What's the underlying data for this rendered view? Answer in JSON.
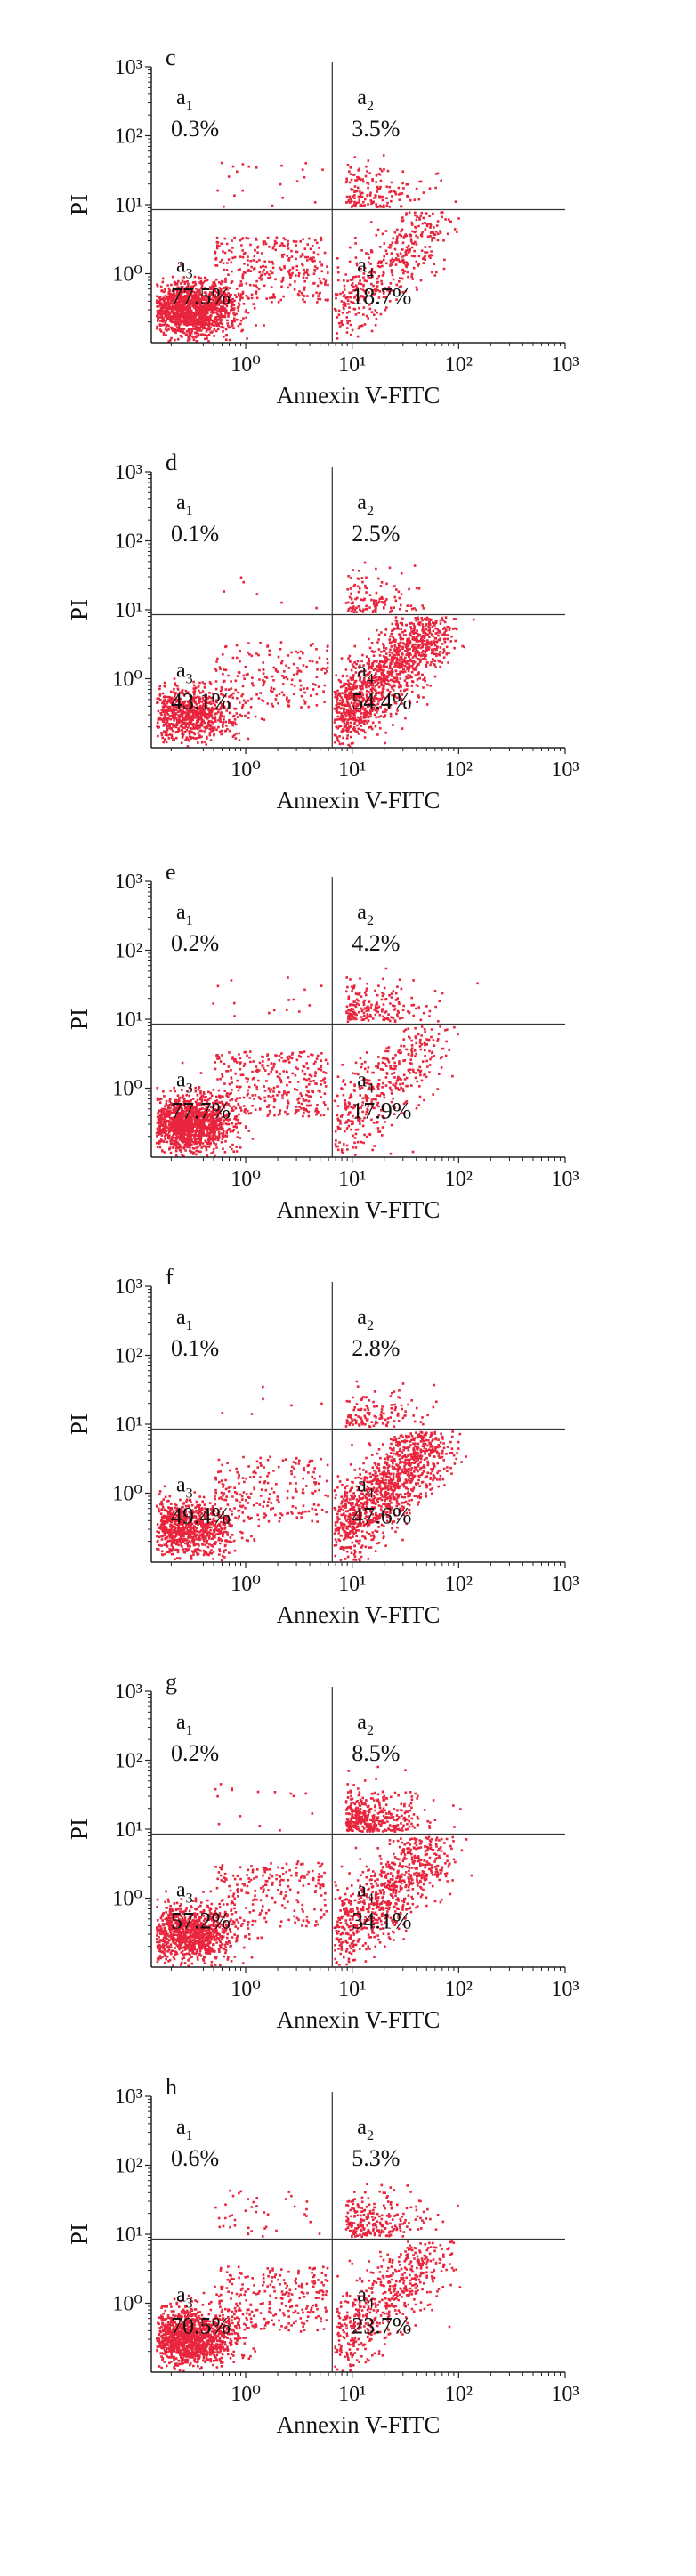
{
  "chart_data": [
    {
      "type": "scatter",
      "panel_label": "c",
      "xlabel": "Annexin V-FITC",
      "ylabel": "PI",
      "x_scale": "log",
      "y_scale": "log",
      "xlim": [
        0.13,
        1000
      ],
      "ylim": [
        0.1,
        1000
      ],
      "x_ticks": [
        "10⁰",
        "10¹",
        "10²",
        "10³"
      ],
      "y_ticks": [
        "10⁰",
        "10¹",
        "10²",
        "10³"
      ],
      "gate": {
        "x": 6.5,
        "y": 8.5
      },
      "color": "#e8253d",
      "quadrants": [
        {
          "name": "a1",
          "value": "0.3%"
        },
        {
          "name": "a2",
          "value": "3.5%"
        },
        {
          "name": "a3",
          "value": "77.5%"
        },
        {
          "name": "a4",
          "value": "18.7%"
        }
      ]
    },
    {
      "type": "scatter",
      "panel_label": "d",
      "xlabel": "Annexin V-FITC",
      "ylabel": "PI",
      "x_scale": "log",
      "y_scale": "log",
      "xlim": [
        0.13,
        1000
      ],
      "ylim": [
        0.1,
        1000
      ],
      "x_ticks": [
        "10⁰",
        "10¹",
        "10²",
        "10³"
      ],
      "y_ticks": [
        "10⁰",
        "10¹",
        "10²",
        "10³"
      ],
      "gate": {
        "x": 6.5,
        "y": 8.5
      },
      "color": "#e8253d",
      "quadrants": [
        {
          "name": "a1",
          "value": "0.1%"
        },
        {
          "name": "a2",
          "value": "2.5%"
        },
        {
          "name": "a3",
          "value": "43.1%"
        },
        {
          "name": "a4",
          "value": "54.4%"
        }
      ]
    },
    {
      "type": "scatter",
      "panel_label": "e",
      "xlabel": "Annexin V-FITC",
      "ylabel": "PI",
      "x_scale": "log",
      "y_scale": "log",
      "xlim": [
        0.13,
        1000
      ],
      "ylim": [
        0.1,
        1000
      ],
      "x_ticks": [
        "10⁰",
        "10¹",
        "10²",
        "10³"
      ],
      "y_ticks": [
        "10⁰",
        "10¹",
        "10²",
        "10³"
      ],
      "gate": {
        "x": 6.5,
        "y": 8.5
      },
      "color": "#e8253d",
      "quadrants": [
        {
          "name": "a1",
          "value": "0.2%"
        },
        {
          "name": "a2",
          "value": "4.2%"
        },
        {
          "name": "a3",
          "value": "77.7%"
        },
        {
          "name": "a4",
          "value": "17.9%"
        }
      ]
    },
    {
      "type": "scatter",
      "panel_label": "f",
      "xlabel": "Annexin V-FITC",
      "ylabel": "PI",
      "x_scale": "log",
      "y_scale": "log",
      "xlim": [
        0.13,
        1000
      ],
      "ylim": [
        0.1,
        1000
      ],
      "x_ticks": [
        "10⁰",
        "10¹",
        "10²",
        "10³"
      ],
      "y_ticks": [
        "10⁰",
        "10¹",
        "10²",
        "10³"
      ],
      "gate": {
        "x": 6.5,
        "y": 8.5
      },
      "color": "#e8253d",
      "quadrants": [
        {
          "name": "a1",
          "value": "0.1%"
        },
        {
          "name": "a2",
          "value": "2.8%"
        },
        {
          "name": "a3",
          "value": "49.4%"
        },
        {
          "name": "a4",
          "value": "47.6%"
        }
      ]
    },
    {
      "type": "scatter",
      "panel_label": "g",
      "xlabel": "Annexin V-FITC",
      "ylabel": "PI",
      "x_scale": "log",
      "y_scale": "log",
      "xlim": [
        0.13,
        1000
      ],
      "ylim": [
        0.1,
        1000
      ],
      "x_ticks": [
        "10⁰",
        "10¹",
        "10²",
        "10³"
      ],
      "y_ticks": [
        "10⁰",
        "10¹",
        "10²",
        "10³"
      ],
      "gate": {
        "x": 6.5,
        "y": 8.5
      },
      "color": "#e8253d",
      "quadrants": [
        {
          "name": "a1",
          "value": "0.2%"
        },
        {
          "name": "a2",
          "value": "8.5%"
        },
        {
          "name": "a3",
          "value": "57.2%"
        },
        {
          "name": "a4",
          "value": "34.1%"
        }
      ]
    },
    {
      "type": "scatter",
      "panel_label": "h",
      "xlabel": "Annexin V-FITC",
      "ylabel": "PI",
      "x_scale": "log",
      "y_scale": "log",
      "xlim": [
        0.13,
        1000
      ],
      "ylim": [
        0.1,
        1000
      ],
      "x_ticks": [
        "10⁰",
        "10¹",
        "10²",
        "10³"
      ],
      "y_ticks": [
        "10⁰",
        "10¹",
        "10²",
        "10³"
      ],
      "gate": {
        "x": 6.5,
        "y": 8.5
      },
      "color": "#e8253d",
      "quadrants": [
        {
          "name": "a1",
          "value": "0.6%"
        },
        {
          "name": "a2",
          "value": "5.3%"
        },
        {
          "name": "a3",
          "value": "70.5%"
        },
        {
          "name": "a4",
          "value": "23.7%"
        }
      ]
    }
  ]
}
